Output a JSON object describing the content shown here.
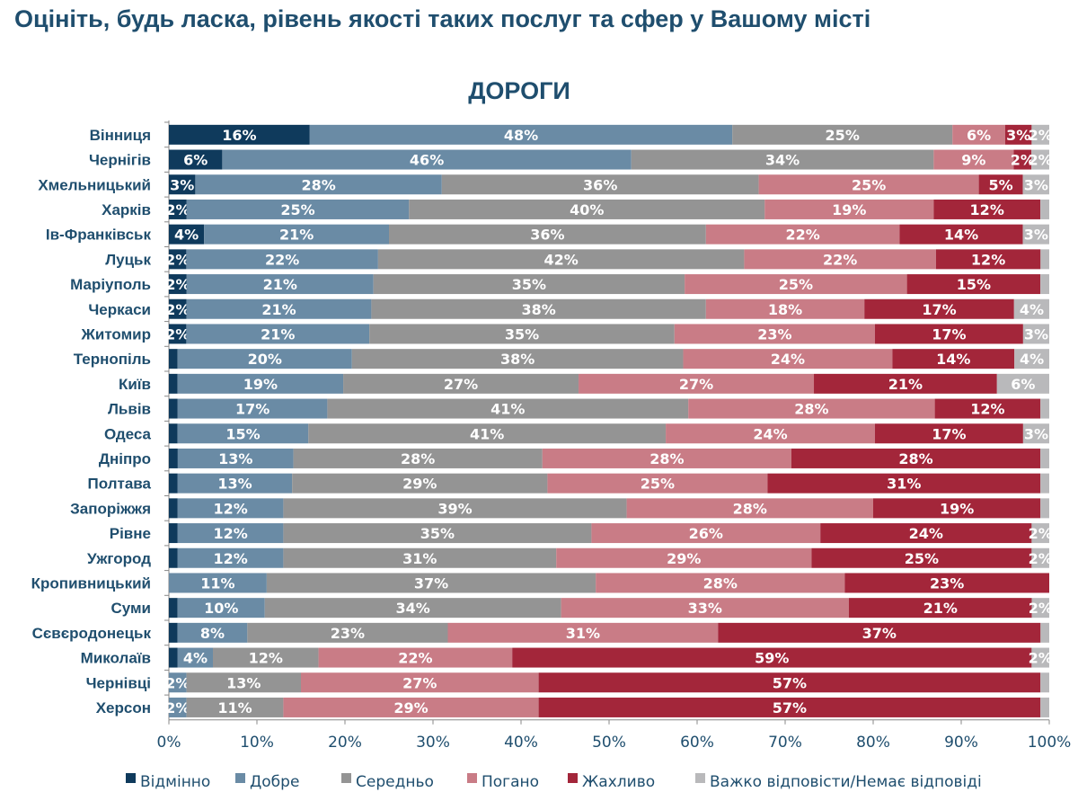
{
  "page_title": "Оцініть, будь ласка, рівень якості таких послуг та сфер у Вашому місті",
  "chart_data": {
    "type": "bar",
    "orientation": "horizontal-stacked-100",
    "title": "ДОРОГИ",
    "xlim": [
      0,
      100
    ],
    "xticks": [
      "0%",
      "10%",
      "20%",
      "30%",
      "40%",
      "50%",
      "60%",
      "70%",
      "80%",
      "90%",
      "100%"
    ],
    "legend_position": "bottom",
    "series": [
      {
        "name": "Відмінно",
        "color": "#0f3a5c"
      },
      {
        "name": "Добре",
        "color": "#6a8ba5"
      },
      {
        "name": "Середньо",
        "color": "#949494"
      },
      {
        "name": "Погано",
        "color": "#c97c86"
      },
      {
        "name": "Жахливо",
        "color": "#a3263a"
      },
      {
        "name": "Важко відповісти/Немає відповіді",
        "color": "#b9b9bb"
      }
    ],
    "categories": [
      "Вінниця",
      "Чернігів",
      "Хмельницький",
      "Харків",
      "Ів-Франківськ",
      "Луцьк",
      "Маріуполь",
      "Черкаси",
      "Житомир",
      "Тернопіль",
      "Київ",
      "Львів",
      "Одеса",
      "Дніпро",
      "Полтава",
      "Запоріжжя",
      "Рівне",
      "Ужгород",
      "Кропивницький",
      "Суми",
      "Сєвєродонецьк",
      "Миколаїв",
      "Чернівці",
      "Херсон"
    ],
    "values": [
      [
        16,
        48,
        25,
        6,
        3,
        2
      ],
      [
        6,
        46,
        34,
        9,
        2,
        2
      ],
      [
        3,
        28,
        36,
        25,
        5,
        3
      ],
      [
        2,
        25,
        40,
        19,
        12,
        1
      ],
      [
        4,
        21,
        36,
        22,
        14,
        3
      ],
      [
        2,
        22,
        42,
        22,
        12,
        1
      ],
      [
        2,
        21,
        35,
        25,
        15,
        1
      ],
      [
        2,
        21,
        38,
        18,
        17,
        4
      ],
      [
        2,
        21,
        35,
        23,
        17,
        3
      ],
      [
        1,
        20,
        38,
        24,
        14,
        4
      ],
      [
        1,
        19,
        27,
        27,
        21,
        6
      ],
      [
        1,
        17,
        41,
        28,
        12,
        1
      ],
      [
        1,
        15,
        41,
        24,
        17,
        3
      ],
      [
        1,
        13,
        28,
        28,
        28,
        1
      ],
      [
        1,
        13,
        29,
        25,
        31,
        1
      ],
      [
        1,
        12,
        39,
        28,
        19,
        1
      ],
      [
        1,
        12,
        35,
        26,
        24,
        2
      ],
      [
        1,
        12,
        31,
        29,
        25,
        2
      ],
      [
        0,
        11,
        37,
        28,
        23,
        0
      ],
      [
        1,
        10,
        34,
        33,
        21,
        2
      ],
      [
        1,
        8,
        23,
        31,
        37,
        1
      ],
      [
        1,
        4,
        12,
        22,
        59,
        2
      ],
      [
        0,
        2,
        13,
        27,
        57,
        1
      ],
      [
        0,
        2,
        11,
        29,
        57,
        1
      ]
    ]
  }
}
